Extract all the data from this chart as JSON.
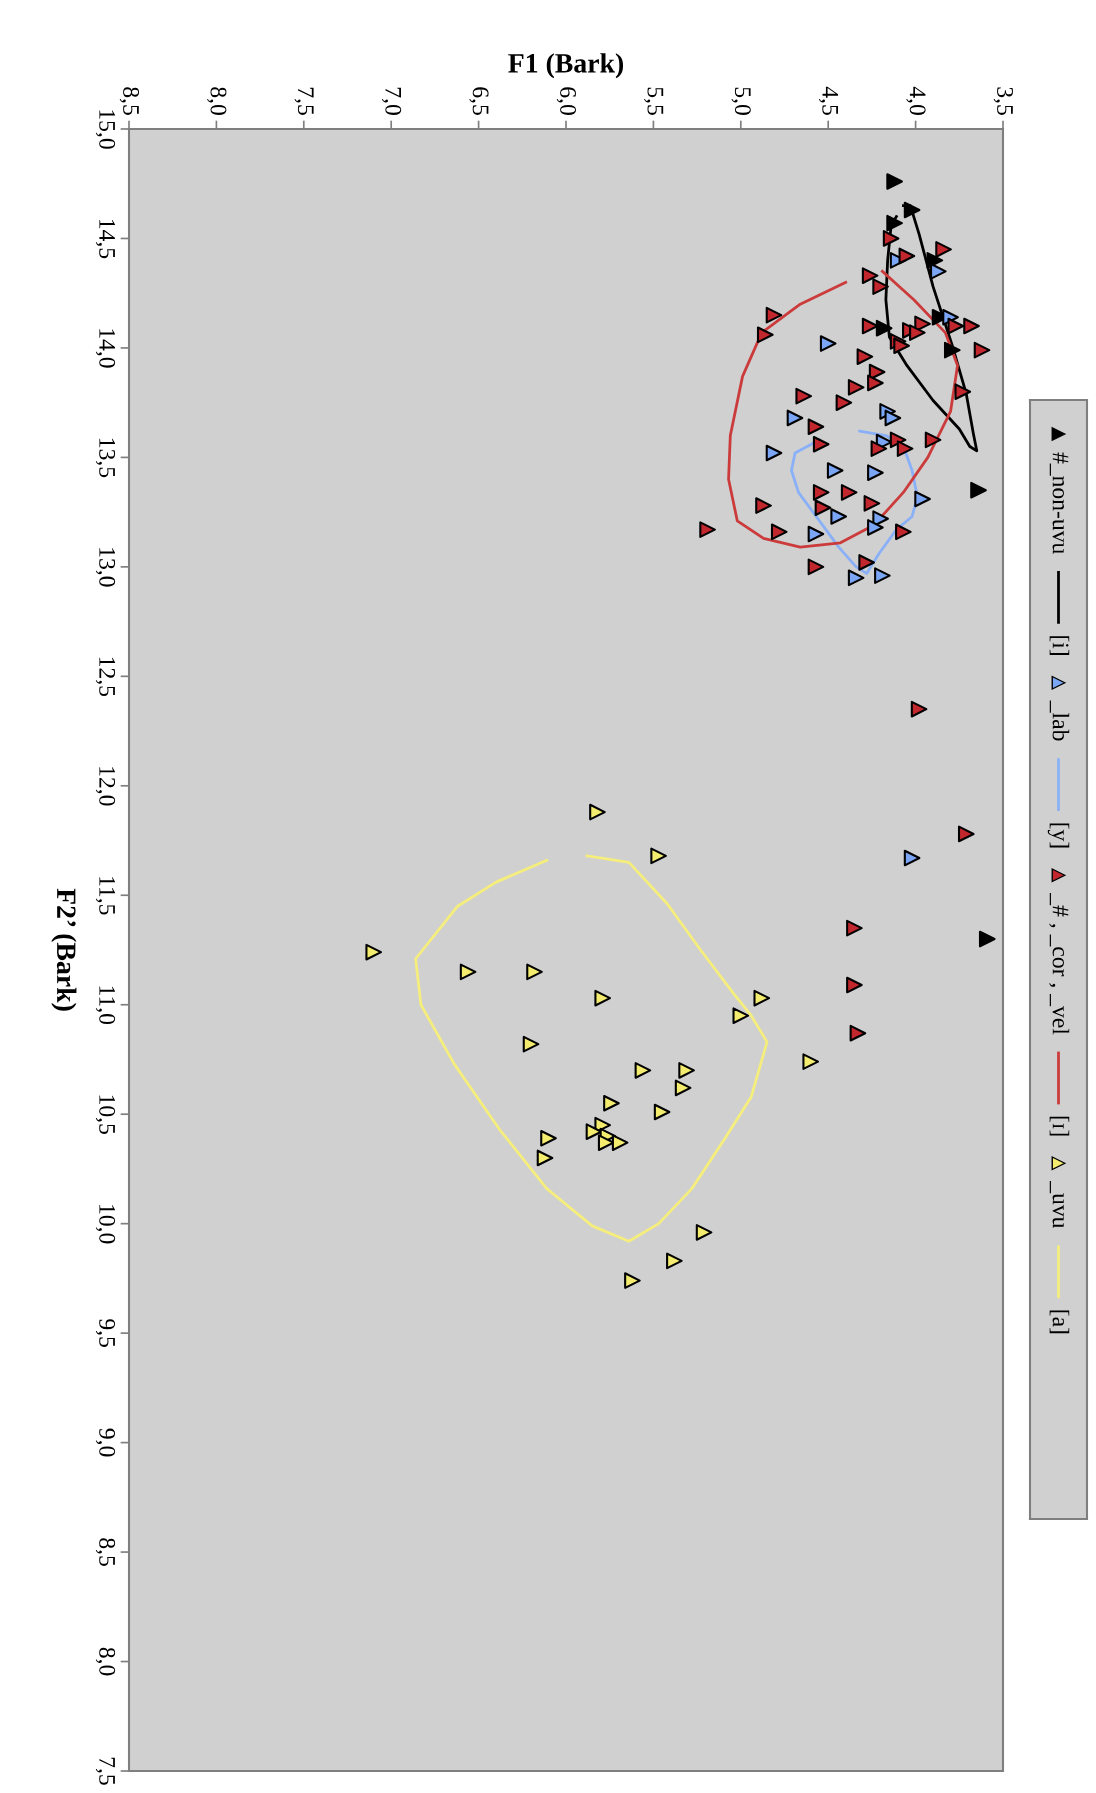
{
  "chart_data": {
    "type": "scatter",
    "xlabel": "F1 (Bark)",
    "ylabel": "F2’ (Bark)",
    "xlim": [
      8.5,
      3.5
    ],
    "ylim": [
      7.5,
      15.0
    ],
    "xticks": [
      {
        "value": 8.5,
        "label": "8,5"
      },
      {
        "value": 8.0,
        "label": "8,0"
      },
      {
        "value": 7.5,
        "label": "7,5"
      },
      {
        "value": 7.0,
        "label": "7,0"
      },
      {
        "value": 6.5,
        "label": "6,5"
      },
      {
        "value": 6.0,
        "label": "6,0"
      },
      {
        "value": 5.5,
        "label": "5,5"
      },
      {
        "value": 5.0,
        "label": "5,0"
      },
      {
        "value": 4.5,
        "label": "4,5"
      },
      {
        "value": 4.0,
        "label": "4,0"
      },
      {
        "value": 3.5,
        "label": "3,5"
      }
    ],
    "yticks": [
      {
        "value": 15.0,
        "label": "15,0"
      },
      {
        "value": 14.5,
        "label": "14,5"
      },
      {
        "value": 14.0,
        "label": "14,0"
      },
      {
        "value": 13.5,
        "label": "13,5"
      },
      {
        "value": 13.0,
        "label": "13,0"
      },
      {
        "value": 12.5,
        "label": "12,5"
      },
      {
        "value": 12.0,
        "label": "12,0"
      },
      {
        "value": 11.5,
        "label": "11,5"
      },
      {
        "value": 11.0,
        "label": "11,0"
      },
      {
        "value": 10.5,
        "label": "10,5"
      },
      {
        "value": 10.0,
        "label": "10,0"
      },
      {
        "value": 9.5,
        "label": "9,5"
      },
      {
        "value": 9.0,
        "label": "9,0"
      },
      {
        "value": 8.5,
        "label": "8,5"
      },
      {
        "value": 8.0,
        "label": "8,0"
      },
      {
        "value": 7.5,
        "label": "7,5"
      }
    ],
    "grid": false,
    "legend": "right",
    "marker": "triangle",
    "line_style": "solid",
    "series": [
      {
        "name": "#_non-uvu",
        "color": "#000000",
        "x": [
          4.12,
          4.02,
          4.12,
          3.89,
          4.18,
          3.86,
          3.79,
          3.64,
          3.59
        ],
        "values": [
          14.76,
          14.63,
          14.57,
          14.4,
          14.09,
          14.14,
          13.99,
          13.35,
          11.3
        ]
      },
      {
        "name": "[i]",
        "type": "line",
        "color": "#000000",
        "marker": "none",
        "x": [
          4.11,
          4.14,
          4.16,
          4.17,
          4.15,
          4.05,
          3.9,
          3.75,
          3.69,
          3.65,
          3.67,
          3.71,
          3.79,
          3.9,
          3.98,
          4.03,
          4.07
        ],
        "values": [
          14.6,
          14.56,
          14.4,
          14.22,
          14.05,
          13.92,
          13.76,
          13.63,
          13.55,
          13.53,
          13.61,
          13.79,
          14.01,
          14.28,
          14.52,
          14.65,
          14.65
        ]
      },
      {
        "name": "_lab",
        "type": "scatter",
        "color": "#7aa6f5",
        "x": [
          4.1,
          3.87,
          4.5,
          3.8,
          4.69,
          4.16,
          4.13,
          4.18,
          4.81,
          4.46,
          4.23,
          3.96,
          4.44,
          4.2,
          4.23,
          4.57,
          4.34,
          4.19,
          4.02
        ],
        "values": [
          14.4,
          14.35,
          14.02,
          14.14,
          13.68,
          13.71,
          13.68,
          13.57,
          13.52,
          13.44,
          13.43,
          13.31,
          13.23,
          13.22,
          13.18,
          13.15,
          12.95,
          12.96,
          11.67
        ]
      },
      {
        "name": "[y]",
        "type": "line",
        "color": "#8ab0f8",
        "marker": "none",
        "x": [
          4.32,
          4.17,
          4.07,
          4.02,
          3.99,
          4.02,
          4.11,
          4.21,
          4.28,
          4.34,
          4.44,
          4.55,
          4.67,
          4.71,
          4.69,
          4.55
        ],
        "values": [
          13.62,
          13.6,
          13.55,
          13.44,
          13.32,
          13.23,
          13.17,
          13.06,
          12.97,
          13.0,
          13.09,
          13.21,
          13.34,
          13.44,
          13.52,
          13.58
        ]
      },
      {
        "name": "_# , _cor , _vel",
        "type": "scatter",
        "color": "#c2272d",
        "x": [
          4.14,
          4.05,
          3.84,
          4.26,
          4.2,
          4.81,
          4.86,
          4.26,
          4.03,
          3.96,
          3.99,
          4.1,
          4.08,
          3.77,
          3.68,
          3.62,
          4.29,
          4.22,
          4.23,
          4.34,
          4.41,
          4.64,
          3.73,
          4.57,
          4.54,
          4.21,
          4.1,
          4.06,
          3.9,
          4.54,
          4.38,
          4.25,
          4.53,
          4.87,
          5.19,
          4.78,
          4.07,
          4.28,
          4.57,
          3.98,
          3.71,
          4.35,
          4.35,
          4.33
        ],
        "values": [
          14.5,
          14.42,
          14.45,
          14.33,
          14.28,
          14.15,
          14.06,
          14.1,
          14.08,
          14.11,
          14.07,
          14.03,
          14.01,
          14.1,
          14.1,
          13.99,
          13.96,
          13.89,
          13.84,
          13.82,
          13.75,
          13.78,
          13.8,
          13.64,
          13.56,
          13.54,
          13.58,
          13.54,
          13.58,
          13.34,
          13.34,
          13.29,
          13.27,
          13.28,
          13.17,
          13.16,
          13.16,
          13.02,
          13.0,
          12.35,
          11.78,
          11.35,
          11.09,
          10.87
        ]
      },
      {
        "name": "[ɪ]",
        "type": "line",
        "color": "#cc3b3b",
        "marker": "none",
        "x": [
          4.19,
          4.01,
          3.83,
          3.76,
          3.8,
          3.93,
          4.07,
          4.24,
          4.43,
          4.66,
          4.87,
          5.02,
          5.07,
          5.06,
          4.99,
          4.88,
          4.66,
          4.4
        ],
        "values": [
          14.35,
          14.22,
          14.07,
          13.92,
          13.71,
          13.5,
          13.34,
          13.19,
          13.11,
          13.09,
          13.13,
          13.21,
          13.4,
          13.6,
          13.87,
          14.07,
          14.2,
          14.3
        ]
      },
      {
        "name": "_uvu",
        "type": "scatter",
        "color": "#f3ec6e",
        "x": [
          5.82,
          5.47,
          7.1,
          6.56,
          6.18,
          5.79,
          4.88,
          5.0,
          6.2,
          4.6,
          5.56,
          5.31,
          5.33,
          5.74,
          5.45,
          6.1,
          6.12,
          5.79,
          5.84,
          5.76,
          5.77,
          5.69,
          5.21,
          5.38,
          5.62
        ],
        "values": [
          11.88,
          11.68,
          11.24,
          11.15,
          11.15,
          11.03,
          11.03,
          10.95,
          10.82,
          10.74,
          10.7,
          10.7,
          10.62,
          10.55,
          10.51,
          10.39,
          10.3,
          10.45,
          10.42,
          10.4,
          10.37,
          10.37,
          9.96,
          9.83,
          9.74
        ]
      },
      {
        "name": "[a]",
        "type": "line",
        "color": "#f5ee7c",
        "marker": "none",
        "x": [
          5.88,
          5.64,
          5.42,
          5.23,
          5.04,
          4.94,
          4.85,
          4.94,
          5.09,
          5.28,
          5.47,
          5.64,
          5.85,
          6.11,
          6.38,
          6.64,
          6.83,
          6.86,
          6.62,
          6.4,
          6.11
        ],
        "values": [
          11.68,
          11.65,
          11.46,
          11.25,
          11.05,
          10.95,
          10.83,
          10.58,
          10.39,
          10.16,
          10.0,
          9.92,
          9.99,
          10.16,
          10.43,
          10.73,
          11.0,
          11.21,
          11.45,
          11.56,
          11.66
        ]
      }
    ]
  }
}
